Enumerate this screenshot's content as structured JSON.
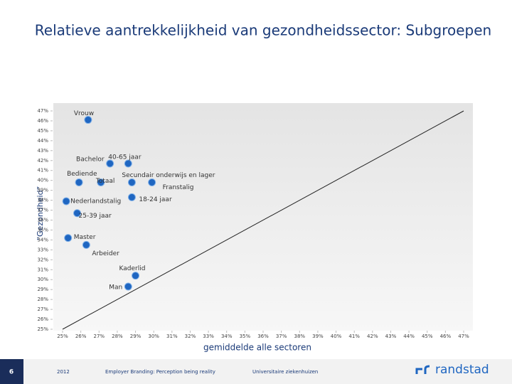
{
  "chart_data": {
    "type": "scatter",
    "title": "Relatieve aantrekkelijkheid van gezondheidssector: Subgroepen",
    "x_label": "gemiddelde alle sectoren",
    "y_label": "“Gezondheid”",
    "labels": [
      "Vrouw",
      "Bachelor",
      "40-65 jaar",
      "Bediende",
      "Totaal",
      "Secundair onderwijs en lager",
      "Franstalig",
      "18-24 jaar",
      "Nederlandstalig",
      "25-39 jaar",
      "Master",
      "Arbeider",
      "Kaderlid",
      "Man"
    ],
    "x": [
      26.4,
      27.6,
      28.6,
      25.9,
      27.1,
      28.8,
      29.9,
      28.8,
      25.2,
      25.8,
      25.3,
      26.3,
      29.0,
      28.6
    ],
    "values": [
      46.1,
      41.7,
      41.7,
      39.8,
      39.8,
      39.8,
      39.8,
      38.3,
      37.9,
      36.7,
      34.2,
      33.5,
      30.4,
      29.3
    ],
    "color": "#1f66c1",
    "xlim": [
      25,
      47
    ],
    "ylim": [
      25,
      47
    ],
    "xticks": [
      {
        "value": 25,
        "label": "25%"
      },
      {
        "value": 26,
        "label": "26%"
      },
      {
        "value": 27,
        "label": "27%"
      },
      {
        "value": 28,
        "label": "28%"
      },
      {
        "value": 29,
        "label": "29%"
      },
      {
        "value": 30,
        "label": "30%"
      },
      {
        "value": 31,
        "label": "31%"
      },
      {
        "value": 32,
        "label": "32%"
      },
      {
        "value": 33,
        "label": "33%"
      },
      {
        "value": 34,
        "label": "34%"
      },
      {
        "value": 35,
        "label": "35%"
      },
      {
        "value": 36,
        "label": "36%"
      },
      {
        "value": 37,
        "label": "37%"
      },
      {
        "value": 38,
        "label": "38%"
      },
      {
        "value": 39,
        "label": "39%"
      },
      {
        "value": 40,
        "label": "40%"
      },
      {
        "value": 41,
        "label": "41%"
      },
      {
        "value": 42,
        "label": "42%"
      },
      {
        "value": 43,
        "label": "43%"
      },
      {
        "value": 44,
        "label": "44%"
      },
      {
        "value": 45,
        "label": "45%"
      },
      {
        "value": 46,
        "label": "46%"
      },
      {
        "value": 47,
        "label": "47%"
      }
    ],
    "yticks": [
      {
        "value": 25,
        "label": "25%"
      },
      {
        "value": 26,
        "label": "26%"
      },
      {
        "value": 27,
        "label": "27%"
      },
      {
        "value": 28,
        "label": "28%"
      },
      {
        "value": 29,
        "label": "29%"
      },
      {
        "value": 30,
        "label": "30%"
      },
      {
        "value": 31,
        "label": "31%"
      },
      {
        "value": 32,
        "label": "32%"
      },
      {
        "value": 33,
        "label": "33%"
      },
      {
        "value": 34,
        "label": "34%"
      },
      {
        "value": 35,
        "label": "35%"
      },
      {
        "value": 36,
        "label": "36%"
      },
      {
        "value": 37,
        "label": "37%"
      },
      {
        "value": 38,
        "label": "38%"
      },
      {
        "value": 39,
        "label": "39%"
      },
      {
        "value": 40,
        "label": "40%"
      },
      {
        "value": 41,
        "label": "41%"
      },
      {
        "value": 42,
        "label": "42%"
      },
      {
        "value": 43,
        "label": "43%"
      },
      {
        "value": 44,
        "label": "44%"
      },
      {
        "value": 45,
        "label": "45%"
      },
      {
        "value": 46,
        "label": "46%"
      },
      {
        "value": 47,
        "label": "47%"
      }
    ]
  },
  "footer": {
    "page": "6",
    "year": "2012",
    "campaign": "Employer Branding: Perception being reality",
    "sector": "Universitaire ziekenhuizen",
    "brand": "randstad"
  }
}
